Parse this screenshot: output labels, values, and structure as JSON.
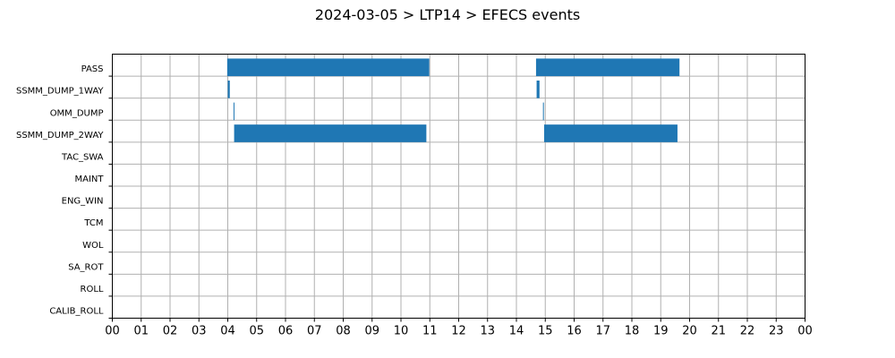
{
  "chart_data": {
    "type": "bar",
    "orientation": "horizontal",
    "title": "2024-03-05 > LTP14 > EFECS events",
    "xlabel": "",
    "ylabel": "",
    "xlim": [
      0,
      24
    ],
    "x_tick_labels": [
      "00",
      "01",
      "02",
      "03",
      "04",
      "05",
      "06",
      "07",
      "08",
      "09",
      "10",
      "11",
      "12",
      "13",
      "14",
      "15",
      "16",
      "17",
      "18",
      "19",
      "20",
      "21",
      "22",
      "23",
      "00"
    ],
    "grid": true,
    "bar_color": "#1f77b4",
    "categories": [
      "PASS",
      "SSMM_DUMP_1WAY",
      "OMM_DUMP",
      "SSMM_DUMP_2WAY",
      "TAC_SWA",
      "MAINT",
      "ENG_WIN",
      "TCM",
      "WOL",
      "SA_ROT",
      "ROLL",
      "CALIB_ROLL"
    ],
    "intervals": [
      {
        "category": "PASS",
        "start": 3.98,
        "end": 10.98
      },
      {
        "category": "PASS",
        "start": 14.68,
        "end": 19.65
      },
      {
        "category": "SSMM_DUMP_1WAY",
        "start": 4.0,
        "end": 4.07
      },
      {
        "category": "SSMM_DUMP_1WAY",
        "start": 14.7,
        "end": 14.8
      },
      {
        "category": "OMM_DUMP",
        "start": 4.2,
        "end": 4.22
      },
      {
        "category": "OMM_DUMP",
        "start": 14.92,
        "end": 14.94
      },
      {
        "category": "SSMM_DUMP_2WAY",
        "start": 4.22,
        "end": 10.88
      },
      {
        "category": "SSMM_DUMP_2WAY",
        "start": 14.96,
        "end": 19.58
      }
    ]
  }
}
